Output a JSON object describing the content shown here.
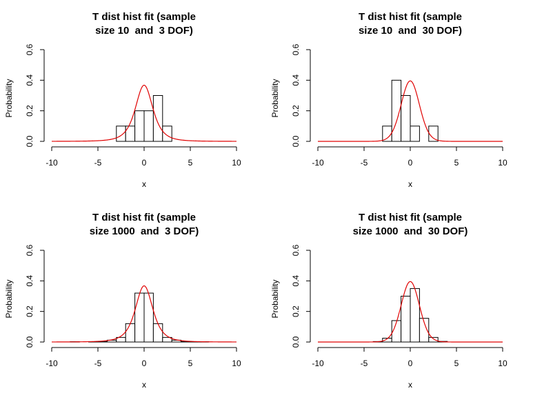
{
  "chart_data": [
    {
      "type": "bar",
      "title_lines": [
        "T dist hist fit (sample",
        "size 10  and  3 DOF)"
      ],
      "xlabel": "x",
      "ylabel": "Probability",
      "xlim": [
        -10,
        10
      ],
      "ylim": [
        0,
        0.6
      ],
      "xticks": [
        "-10",
        "-5",
        "0",
        "5",
        "10"
      ],
      "yticks": [
        "0.0",
        "0.2",
        "0.4",
        "0.6"
      ],
      "bin_edges": [
        -3,
        -2,
        -1,
        0,
        1,
        2,
        3
      ],
      "density": [
        0.1,
        0.1,
        0.2,
        0.2,
        0.3,
        0.1
      ],
      "fit_curve": {
        "distribution": "t",
        "dof": 3,
        "color": "#e00000"
      }
    },
    {
      "type": "bar",
      "title_lines": [
        "T dist hist fit (sample",
        "size 10  and  30 DOF)"
      ],
      "xlabel": "x",
      "ylabel": "Probability",
      "xlim": [
        -10,
        10
      ],
      "ylim": [
        0,
        0.6
      ],
      "xticks": [
        "-10",
        "-5",
        "0",
        "5",
        "10"
      ],
      "yticks": [
        "0.0",
        "0.2",
        "0.4",
        "0.6"
      ],
      "bin_edges": [
        -3,
        -2,
        -1,
        0,
        1,
        2,
        3
      ],
      "density": [
        0.1,
        0.4,
        0.3,
        0.1,
        0.0,
        0.1
      ],
      "fit_curve": {
        "distribution": "t",
        "dof": 30,
        "color": "#e00000"
      }
    },
    {
      "type": "bar",
      "title_lines": [
        "T dist hist fit (sample",
        "size 1000  and  3 DOF)"
      ],
      "xlabel": "x",
      "ylabel": "Probability",
      "xlim": [
        -10,
        10
      ],
      "ylim": [
        0,
        0.6
      ],
      "xticks": [
        "-10",
        "-5",
        "0",
        "5",
        "10"
      ],
      "yticks": [
        "0.0",
        "0.2",
        "0.4",
        "0.6"
      ],
      "bin_edges": [
        -8,
        -7,
        -6,
        -5,
        -4,
        -3,
        -2,
        -1,
        0,
        1,
        2,
        3,
        4,
        5,
        6,
        7
      ],
      "density": [
        0.002,
        0.0,
        0.002,
        0.004,
        0.012,
        0.03,
        0.12,
        0.32,
        0.32,
        0.12,
        0.03,
        0.012,
        0.004,
        0.002,
        0.002
      ],
      "fit_curve": {
        "distribution": "t",
        "dof": 3,
        "color": "#e00000"
      }
    },
    {
      "type": "bar",
      "title_lines": [
        "T dist hist fit (sample",
        "size 1000  and  30 DOF)"
      ],
      "xlabel": "x",
      "ylabel": "Probability",
      "xlim": [
        -10,
        10
      ],
      "ylim": [
        0,
        0.6
      ],
      "xticks": [
        "-10",
        "-5",
        "0",
        "5",
        "10"
      ],
      "yticks": [
        "0.0",
        "0.2",
        "0.4",
        "0.6"
      ],
      "bin_edges": [
        -4,
        -3,
        -2,
        -1,
        0,
        1,
        2,
        3,
        4
      ],
      "density": [
        0.003,
        0.025,
        0.14,
        0.3,
        0.35,
        0.155,
        0.03,
        0.004
      ],
      "fit_curve": {
        "distribution": "t",
        "dof": 30,
        "color": "#e00000"
      }
    }
  ]
}
